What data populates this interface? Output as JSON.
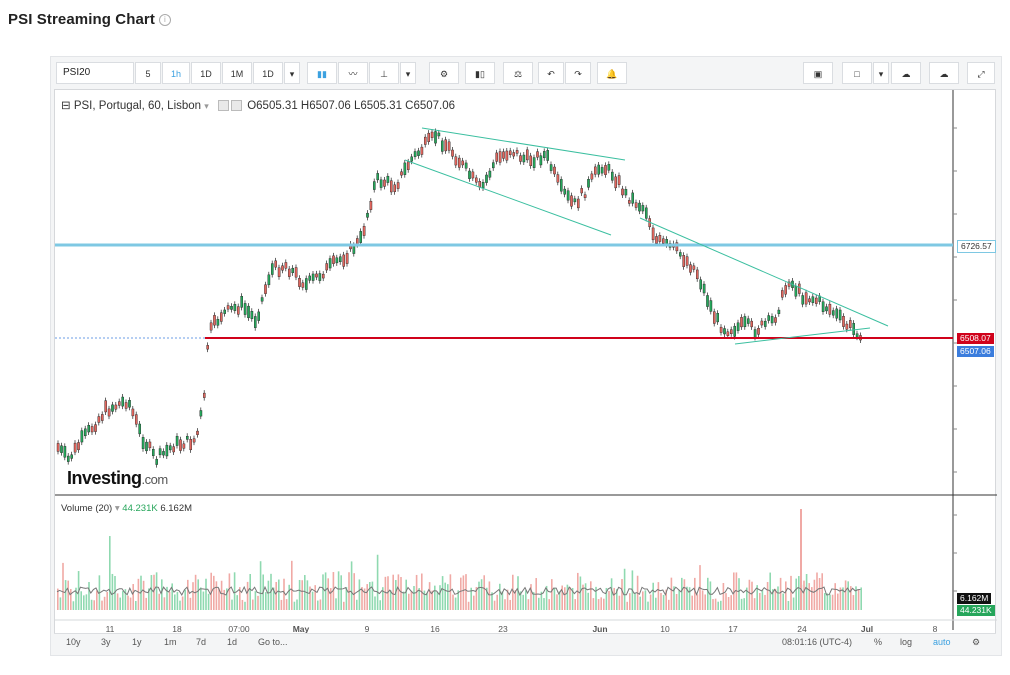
{
  "page": {
    "title": "PSI Streaming Chart"
  },
  "toolbar": {
    "symbol": "PSI20",
    "intervals": [
      "5",
      "1h",
      "1D",
      "1M",
      "1D"
    ],
    "active_interval": "1h"
  },
  "legend": {
    "name": "PSI, Portugal, 60, Lisbon",
    "open": "O6505.31",
    "high": "H6507.06",
    "low": "L6505.31",
    "close": "C6507.06"
  },
  "volume_legend": {
    "name": "Volume (20)",
    "value1": "44.231K",
    "value2": "6.162M"
  },
  "price_tags": {
    "upper": "6726.57",
    "lower": "6508.07",
    "last": "6507.06"
  },
  "volume_tags": {
    "ma": "6.162M",
    "vol": "44.231K"
  },
  "x_axis": [
    "11",
    "18",
    "07:00",
    "May",
    "9",
    "16",
    "23",
    "Jun",
    "10",
    "17",
    "24",
    "Jul",
    "8"
  ],
  "logo": {
    "brand": "Investing",
    "suffix": ".com"
  },
  "bottom_bar": {
    "ranges": [
      "10y",
      "3y",
      "1y",
      "1m",
      "7d",
      "1d"
    ],
    "goto": "Go to...",
    "time": "08:01:16 (UTC-4)",
    "percent": "%",
    "log": "log",
    "auto": "auto"
  },
  "colors": {
    "up": "#26a65b",
    "down": "#e0665e",
    "resistance": "#7ec8e3",
    "support": "#d0021b",
    "trend": "#3bbfa0",
    "accent": "#3ba1e0"
  }
}
